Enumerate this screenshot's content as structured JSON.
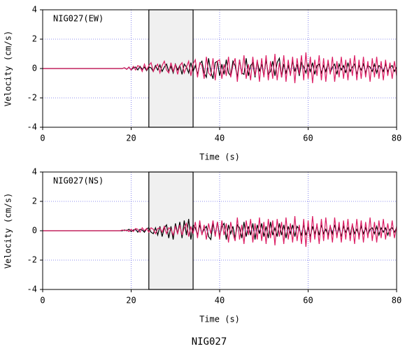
{
  "chart_data": [
    {
      "type": "line",
      "title": "NIG027(EW)",
      "xlabel": "Time (s)",
      "ylabel": "Velocity (cm/s)",
      "xlim": [
        0,
        80
      ],
      "ylim": [
        -4,
        4
      ],
      "xticks": [
        0,
        20,
        40,
        60,
        80
      ],
      "yticks": [
        -4,
        -2,
        0,
        2,
        4
      ],
      "grid": true,
      "window": [
        24,
        34
      ],
      "x": [
        0,
        0.5,
        1,
        1.5,
        2,
        2.5,
        3,
        3.5,
        4,
        4.5,
        5,
        5.5,
        6,
        6.5,
        7,
        7.5,
        8,
        8.5,
        9,
        9.5,
        10,
        10.5,
        11,
        11.5,
        12,
        12.5,
        13,
        13.5,
        14,
        14.5,
        15,
        15.5,
        16,
        16.5,
        17,
        17.5,
        18,
        18.5,
        19,
        19.5,
        20,
        20.5,
        21,
        21.5,
        22,
        22.5,
        23,
        23.5,
        24,
        24.5,
        25,
        25.5,
        26,
        26.5,
        27,
        27.5,
        28,
        28.5,
        29,
        29.5,
        30,
        30.5,
        31,
        31.5,
        32,
        32.5,
        33,
        33.5,
        34,
        34.5,
        35,
        35.5,
        36,
        36.5,
        37,
        37.5,
        38,
        38.5,
        39,
        39.5,
        40,
        40.5,
        41,
        41.5,
        42,
        42.5,
        43,
        43.5,
        44,
        44.5,
        45,
        45.5,
        46,
        46.5,
        47,
        47.5,
        48,
        48.5,
        49,
        49.5,
        50,
        50.5,
        51,
        51.5,
        52,
        52.5,
        53,
        53.5,
        54,
        54.5,
        55,
        55.5,
        56,
        56.5,
        57,
        57.5,
        58,
        58.5,
        59,
        59.5,
        60,
        60.5,
        61,
        61.5,
        62,
        62.5,
        63,
        63.5,
        64,
        64.5,
        65,
        65.5,
        66,
        66.5,
        67,
        67.5,
        68,
        68.5,
        69,
        69.5,
        70,
        70.5,
        71,
        71.5,
        72,
        72.5,
        73,
        73.5,
        74,
        74.5,
        75,
        75.5,
        76,
        76.5,
        77,
        77.5,
        78,
        78.5,
        79,
        79.5,
        80
      ],
      "series": [
        {
          "color": "#000000",
          "values": [
            0,
            0,
            0,
            0,
            0,
            0,
            0,
            0,
            0,
            0,
            0,
            0,
            0,
            0,
            0,
            0,
            0,
            0,
            0,
            0,
            0,
            0,
            0,
            0,
            0,
            0,
            0,
            0,
            0,
            0,
            0,
            0,
            0,
            0,
            0,
            0,
            0,
            0.05,
            -0.05,
            0.1,
            -0.1,
            0.05,
            0.1,
            -0.1,
            0.15,
            -0.05,
            0.1,
            -0.15,
            0.1,
            0.05,
            -0.2,
            0.2,
            -0.1,
            0.25,
            -0.2,
            0.1,
            0.3,
            -0.2,
            0.15,
            -0.3,
            0.3,
            -0.1,
            0.2,
            -0.4,
            0.3,
            0.1,
            -0.3,
            0.4,
            -0.2,
            0.2,
            -0.4,
            0.3,
            0.5,
            -0.3,
            -0.6,
            0.7,
            -0.2,
            -0.7,
            0.4,
            0.5,
            -0.5,
            0.3,
            -0.4,
            0.6,
            -0.3,
            -0.5,
            0.5,
            0.2,
            -0.6,
            0.6,
            -0.3,
            -0.4,
            0.7,
            -0.5,
            0.2,
            0.4,
            -0.6,
            0.5,
            -0.2,
            0.3,
            -0.5,
            0.6,
            -0.4,
            -0.2,
            0.5,
            -0.5,
            0.4,
            0.7,
            -0.6,
            0.3,
            -0.3,
            0.2,
            -0.4,
            0.5,
            -0.2,
            0.3,
            -0.5,
            0.4,
            0.1,
            -0.3,
            0.3,
            -0.2,
            0.4,
            -0.4,
            0.2,
            0.3,
            -0.3,
            0.2,
            -0.2,
            0.4,
            -0.3,
            0.1,
            0.3,
            -0.4,
            0.3,
            -0.1,
            0.2,
            -0.3,
            0.4,
            -0.2,
            0.1,
            0.3,
            -0.4,
            0.2,
            -0.1,
            0.3,
            -0.3,
            0.2,
            0.1,
            -0.2,
            0.3,
            -0.3,
            0.2,
            0.1,
            -0.2,
            0.3,
            -0.2,
            0.1,
            0.2,
            -0.2,
            0.1
          ]
        },
        {
          "color": "#dc1e64",
          "values": [
            0,
            0,
            0,
            0,
            0,
            0,
            0,
            0,
            0,
            0,
            0,
            0,
            0,
            0,
            0,
            0,
            0,
            0,
            0,
            0,
            0,
            0,
            0,
            0,
            0,
            0,
            0,
            0,
            0,
            0,
            0,
            0,
            0,
            0,
            0,
            0,
            0,
            0.05,
            -0.05,
            0.1,
            -0.1,
            0.15,
            -0.1,
            0.2,
            0.1,
            -0.2,
            0.3,
            -0.1,
            0.2,
            0.4,
            -0.2,
            0.1,
            0.3,
            -0.3,
            0.2,
            0.5,
            -0.1,
            -0.3,
            0.4,
            -0.2,
            0.3,
            -0.4,
            0.2,
            0.4,
            -0.3,
            0.1,
            0.5,
            -0.5,
            0.3,
            0.6,
            -0.6,
            0.4,
            0.2,
            -0.7,
            0.8,
            -0.3,
            -0.5,
            0.7,
            -0.8,
            0.5,
            0.6,
            -0.7,
            0.3,
            -0.5,
            0.8,
            -0.6,
            0.2,
            0.7,
            -0.9,
            0.6,
            -0.4,
            0.9,
            -0.7,
            0.3,
            -0.8,
            0.8,
            -0.5,
            0.6,
            -0.9,
            0.7,
            -0.6,
            0.9,
            -0.8,
            0.5,
            -0.7,
            1.0,
            -0.8,
            0.4,
            -0.6,
            0.9,
            -0.9,
            0.6,
            -0.5,
            0.8,
            -1.0,
            0.7,
            -0.4,
            0.9,
            -0.8,
            1.1,
            -0.7,
            0.8,
            -1.0,
            0.6,
            -0.5,
            0.9,
            -0.8,
            0.7,
            -0.9,
            0.6,
            -0.4,
            0.8,
            -0.9,
            0.5,
            -0.6,
            0.8,
            -0.7,
            0.6,
            -0.8,
            0.7,
            -0.5,
            0.9,
            -0.8,
            0.6,
            -0.7,
            0.8,
            -0.6,
            0.5,
            -0.9,
            0.7,
            -0.6,
            0.8,
            -0.7,
            0.5,
            -0.8,
            0.6,
            -0.5,
            0.4,
            -0.7,
            0.5,
            -0.5
          ]
        }
      ]
    },
    {
      "type": "line",
      "title": "NIG027(NS)",
      "xlabel": "Time (s)",
      "ylabel": "Velocity (cm/s)",
      "xlim": [
        0,
        80
      ],
      "ylim": [
        -4,
        4
      ],
      "xticks": [
        0,
        20,
        40,
        60,
        80
      ],
      "yticks": [
        -4,
        -2,
        0,
        2,
        4
      ],
      "grid": true,
      "window": [
        24,
        34
      ],
      "x": [
        0,
        0.5,
        1,
        1.5,
        2,
        2.5,
        3,
        3.5,
        4,
        4.5,
        5,
        5.5,
        6,
        6.5,
        7,
        7.5,
        8,
        8.5,
        9,
        9.5,
        10,
        10.5,
        11,
        11.5,
        12,
        12.5,
        13,
        13.5,
        14,
        14.5,
        15,
        15.5,
        16,
        16.5,
        17,
        17.5,
        18,
        18.5,
        19,
        19.5,
        20,
        20.5,
        21,
        21.5,
        22,
        22.5,
        23,
        23.5,
        24,
        24.5,
        25,
        25.5,
        26,
        26.5,
        27,
        27.5,
        28,
        28.5,
        29,
        29.5,
        30,
        30.5,
        31,
        31.5,
        32,
        32.5,
        33,
        33.5,
        34,
        34.5,
        35,
        35.5,
        36,
        36.5,
        37,
        37.5,
        38,
        38.5,
        39,
        39.5,
        40,
        40.5,
        41,
        41.5,
        42,
        42.5,
        43,
        43.5,
        44,
        44.5,
        45,
        45.5,
        46,
        46.5,
        47,
        47.5,
        48,
        48.5,
        49,
        49.5,
        50,
        50.5,
        51,
        51.5,
        52,
        52.5,
        53,
        53.5,
        54,
        54.5,
        55,
        55.5,
        56,
        56.5,
        57,
        57.5,
        58,
        58.5,
        59,
        59.5,
        60,
        60.5,
        61,
        61.5,
        62,
        62.5,
        63,
        63.5,
        64,
        64.5,
        65,
        65.5,
        66,
        66.5,
        67,
        67.5,
        68,
        68.5,
        69,
        69.5,
        70,
        70.5,
        71,
        71.5,
        72,
        72.5,
        73,
        73.5,
        74,
        74.5,
        75,
        75.5,
        76,
        76.5,
        77,
        77.5,
        78,
        78.5,
        79,
        79.5,
        80
      ],
      "series": [
        {
          "color": "#000000",
          "values": [
            0,
            0,
            0,
            0,
            0,
            0,
            0,
            0,
            0,
            0,
            0,
            0,
            0,
            0,
            0,
            0,
            0,
            0,
            0,
            0,
            0,
            0,
            0,
            0,
            0,
            0,
            0,
            0,
            0,
            0,
            0,
            0,
            0,
            0,
            0,
            0,
            0,
            0.05,
            0,
            0.1,
            -0.05,
            0.05,
            0.1,
            -0.1,
            0.1,
            0.05,
            -0.1,
            0.15,
            0.2,
            -0.1,
            -0.2,
            0.2,
            -0.3,
            0.3,
            -0.4,
            0.2,
            0.4,
            -0.5,
            0.3,
            -0.6,
            0.5,
            -0.2,
            0.6,
            -0.5,
            0.7,
            -0.3,
            0.8,
            -0.6,
            0.4,
            0.2,
            -0.3,
            0.4,
            -0.2,
            0.1,
            0.3,
            -0.4,
            -0.6,
            0.5,
            -0.3,
            0.6,
            -0.4,
            0.3,
            0.5,
            -0.6,
            0.4,
            -0.2,
            0.3,
            -0.5,
            0.4,
            0.2,
            -0.5,
            0.6,
            -0.4,
            0.3,
            -0.3,
            0.5,
            -0.6,
            0.4,
            -0.2,
            0.5,
            -0.4,
            0.3,
            -0.5,
            0.6,
            -0.3,
            0.2,
            -0.4,
            0.5,
            -0.3,
            0.4,
            -0.5,
            0.3,
            -0.2,
            0.4,
            -0.4,
            0.3,
            0.1,
            -0.3,
            0.4,
            -0.3,
            0.2,
            -0.4,
            0.3,
            -0.2,
            0.3,
            -0.3,
            0.4,
            -0.2,
            0.1,
            -0.3,
            0.3,
            -0.2,
            0.4,
            -0.3,
            0.2,
            -0.4,
            0.3,
            -0.1,
            0.2,
            -0.3,
            0.4,
            -0.2,
            0.1,
            -0.3,
            0.3,
            -0.2,
            0.2,
            -0.3,
            0.1,
            0.2,
            -0.2,
            0.3,
            -0.3,
            0.2,
            -0.1,
            0.2,
            -0.3,
            0.1,
            0.2,
            -0.1,
            0.2
          ]
        },
        {
          "color": "#dc1e64",
          "values": [
            0,
            0,
            0,
            0,
            0,
            0,
            0,
            0,
            0,
            0,
            0,
            0,
            0,
            0,
            0,
            0,
            0,
            0,
            0,
            0,
            0,
            0,
            0,
            0,
            0,
            0,
            0,
            0,
            0,
            0,
            0,
            0,
            0,
            0,
            0,
            0,
            0.05,
            0,
            0.05,
            -0.05,
            0.1,
            -0.05,
            0.15,
            0.1,
            -0.1,
            0.2,
            0,
            0.15,
            -0.1,
            0.2,
            0.1,
            -0.2,
            0.15,
            0.2,
            -0.1,
            0.3,
            -0.2,
            0.2,
            0.1,
            -0.3,
            0.3,
            -0.2,
            0.4,
            -0.3,
            0.2,
            0.5,
            -0.4,
            0.3,
            -0.2,
            0.6,
            -0.5,
            0.7,
            -0.3,
            0.4,
            -0.6,
            0.5,
            -0.2,
            0.7,
            -0.4,
            0.6,
            -0.6,
            0.7,
            -0.3,
            0.5,
            -0.8,
            0.6,
            -0.2,
            -0.7,
            0.9,
            -0.6,
            0.4,
            -0.9,
            0.7,
            -0.3,
            0.8,
            -0.8,
            0.5,
            -0.6,
            0.9,
            -0.7,
            0.6,
            -0.9,
            0.8,
            -0.5,
            0.7,
            -1.0,
            0.8,
            -0.4,
            0.6,
            -0.9,
            0.9,
            -0.6,
            0.5,
            -0.8,
            1.0,
            -0.7,
            0.4,
            -0.9,
            0.8,
            -1.1,
            0.7,
            -0.8,
            1.0,
            -0.6,
            0.5,
            -0.9,
            0.8,
            -0.7,
            0.9,
            -0.6,
            0.4,
            -0.8,
            0.9,
            -0.5,
            0.6,
            -0.8,
            0.7,
            -0.6,
            0.8,
            -0.7,
            0.5,
            -0.9,
            0.8,
            -0.6,
            0.7,
            -0.8,
            0.6,
            -0.5,
            0.9,
            -0.7,
            0.6,
            -0.8,
            0.7,
            -0.5,
            0.8,
            -0.6,
            0.5,
            -0.4,
            0.7,
            -0.5,
            0.3
          ]
        }
      ]
    }
  ],
  "caption": "NIG027"
}
